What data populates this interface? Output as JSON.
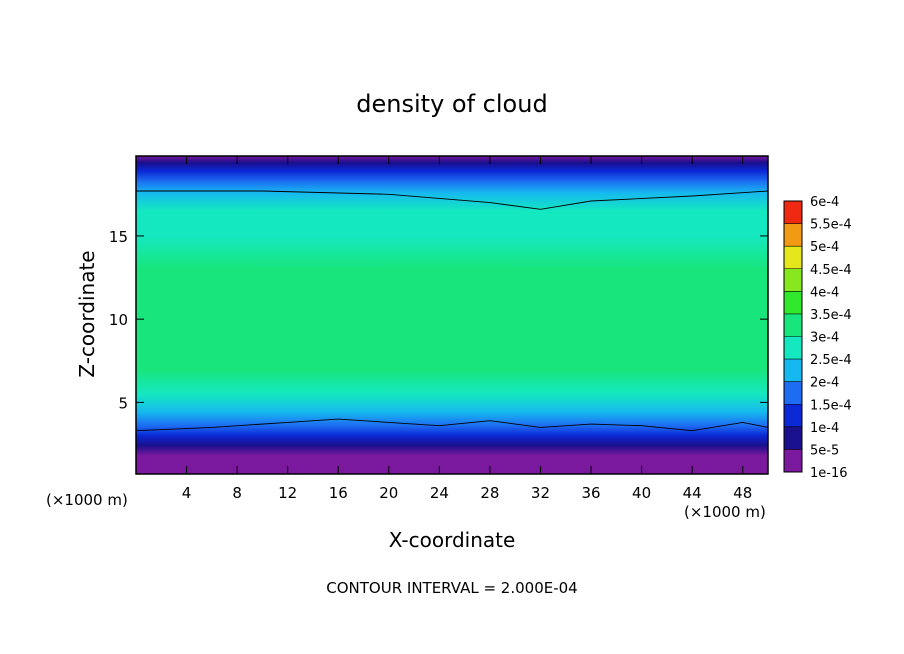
{
  "chart_data": {
    "type": "heatmap",
    "title": "density of cloud",
    "xlabel": "X-coordinate",
    "ylabel": "Z-coordinate",
    "x_unit_left": "(×1000 m)",
    "x_unit_right": "(×1000 m)",
    "footer": "CONTOUR INTERVAL = 2.000E-04",
    "xlim": [
      0,
      50
    ],
    "ylim": [
      0.7,
      19.8
    ],
    "x_ticks": [
      4,
      8,
      12,
      16,
      20,
      24,
      28,
      32,
      36,
      40,
      44,
      48
    ],
    "x_tick_labels": [
      "4",
      "8",
      "12",
      "16",
      "20",
      "24",
      "28",
      "32",
      "36",
      "40",
      "44",
      "48"
    ],
    "y_ticks": [
      5,
      10,
      15
    ],
    "y_tick_labels": [
      "5",
      "10",
      "15"
    ],
    "colorbar": {
      "levels": [
        "1e-16",
        "5e-5",
        "1e-4",
        "1.5e-4",
        "2e-4",
        "2.5e-4",
        "3e-4",
        "3.5e-4",
        "4e-4",
        "4.5e-4",
        "5e-4",
        "5.5e-4",
        "6e-4"
      ],
      "colors": [
        "#7a189e",
        "#1a0f8c",
        "#0a28d4",
        "#1d6cf2",
        "#16b8f0",
        "#14e8c0",
        "#18e67c",
        "#30e82c",
        "#88e81e",
        "#e6e61c",
        "#f29a14",
        "#f02a12",
        "#f07a84"
      ]
    },
    "z_profile": [
      {
        "z": 0.7,
        "value": 1e-06
      },
      {
        "z": 1.3,
        "value": 4e-06
      },
      {
        "z": 1.8,
        "value": 4e-05
      },
      {
        "z": 2.4,
        "value": 9e-05
      },
      {
        "z": 3.0,
        "value": 0.00013
      },
      {
        "z": 3.6,
        "value": 0.00019
      },
      {
        "z": 4.4,
        "value": 0.000245
      },
      {
        "z": 5.5,
        "value": 0.00029
      },
      {
        "z": 7.0,
        "value": 0.00032
      },
      {
        "z": 9.0,
        "value": 0.000345
      },
      {
        "z": 11.0,
        "value": 0.000335
      },
      {
        "z": 13.0,
        "value": 0.00031
      },
      {
        "z": 15.0,
        "value": 0.00028
      },
      {
        "z": 16.5,
        "value": 0.00025
      },
      {
        "z": 17.6,
        "value": 0.000205
      },
      {
        "z": 18.3,
        "value": 0.00016
      },
      {
        "z": 18.9,
        "value": 0.00011
      },
      {
        "z": 19.4,
        "value": 6e-05
      },
      {
        "z": 19.8,
        "value": 2e-05
      }
    ],
    "contour_2e-4": {
      "upper": [
        [
          0,
          17.7
        ],
        [
          10,
          17.7
        ],
        [
          20,
          17.5
        ],
        [
          28,
          17.0
        ],
        [
          32,
          16.6
        ],
        [
          36,
          17.1
        ],
        [
          44,
          17.4
        ],
        [
          50,
          17.7
        ]
      ],
      "lower": [
        [
          0,
          3.3
        ],
        [
          6,
          3.5
        ],
        [
          12,
          3.8
        ],
        [
          16,
          4.0
        ],
        [
          20,
          3.8
        ],
        [
          24,
          3.6
        ],
        [
          28,
          3.9
        ],
        [
          32,
          3.5
        ],
        [
          36,
          3.7
        ],
        [
          40,
          3.6
        ],
        [
          44,
          3.3
        ],
        [
          48,
          3.8
        ],
        [
          50,
          3.5
        ]
      ]
    }
  }
}
